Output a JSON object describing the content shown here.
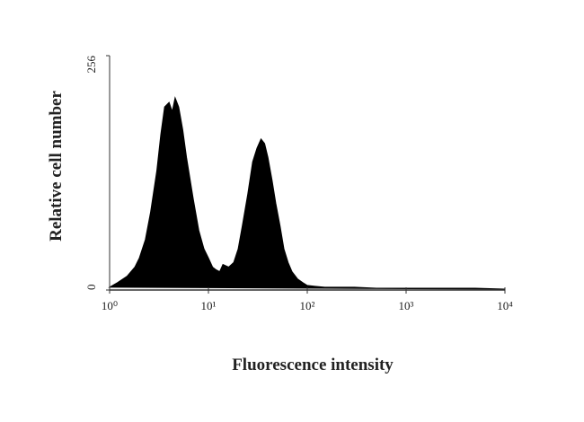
{
  "chart_data": {
    "type": "area",
    "xlabel": "Fluorescence intensity",
    "ylabel": "Relative cell number",
    "xscale": "log",
    "color": "#000000",
    "xlim": [
      1,
      10000
    ],
    "xticks": [
      {
        "value": 1,
        "label": "10⁰"
      },
      {
        "value": 10,
        "label": "10¹"
      },
      {
        "value": 100,
        "label": "10²"
      },
      {
        "value": 1000,
        "label": "10³"
      },
      {
        "value": 10000,
        "label": "10⁴"
      }
    ],
    "ylim": [
      0,
      256
    ],
    "yticks": [
      0,
      256
    ],
    "x": [
      1,
      1.2,
      1.5,
      1.8,
      2.0,
      2.3,
      2.6,
      3.0,
      3.3,
      3.6,
      4.0,
      4.3,
      4.6,
      5.0,
      5.5,
      6,
      7,
      8,
      9,
      10,
      11,
      12,
      13,
      14,
      16,
      18,
      20,
      22,
      25,
      28,
      31,
      34,
      37,
      40,
      44,
      48,
      53,
      58,
      64,
      70,
      80,
      90,
      100,
      120,
      150,
      200,
      300,
      500,
      1000,
      2000,
      5000,
      10000
    ],
    "values": [
      3,
      8,
      15,
      25,
      35,
      55,
      85,
      130,
      170,
      200,
      205,
      195,
      210,
      200,
      175,
      145,
      100,
      65,
      45,
      35,
      25,
      22,
      20,
      28,
      25,
      30,
      45,
      70,
      105,
      140,
      155,
      165,
      160,
      145,
      120,
      95,
      70,
      45,
      30,
      20,
      12,
      8,
      5,
      4,
      3,
      3,
      3,
      2,
      2,
      2,
      2,
      1
    ]
  }
}
